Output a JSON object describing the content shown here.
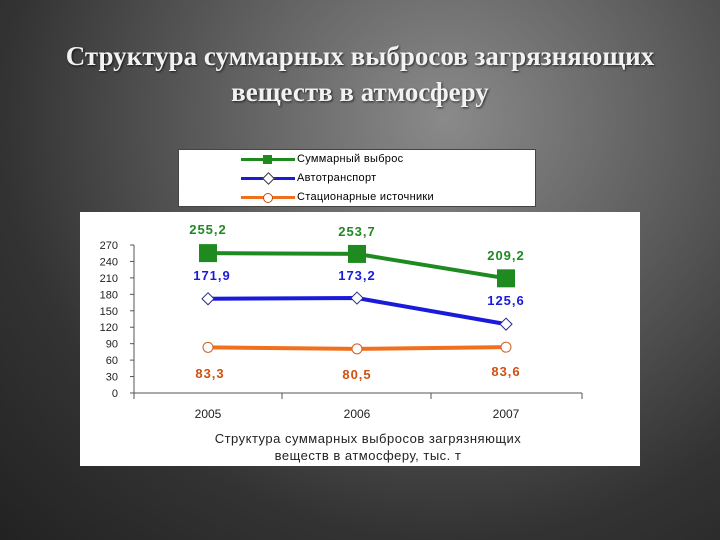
{
  "slide": {
    "title_line1": "Структура суммарных выбросов загрязняющих",
    "title_line2": "веществ в атмосферу"
  },
  "chart_data": {
    "type": "line",
    "categories": [
      "2005",
      "2006",
      "2007"
    ],
    "series": [
      {
        "name": "Суммарный выброс",
        "values": [
          255.2,
          253.7,
          209.2
        ],
        "labels": [
          "255,2",
          "253,7",
          "209,2"
        ],
        "color": "#1f8a1f",
        "marker": "square"
      },
      {
        "name": "Автотранспорт",
        "values": [
          171.9,
          173.2,
          125.6
        ],
        "labels": [
          "171,9",
          "173,2",
          "125,6"
        ],
        "color": "#1a1adb",
        "marker": "diamond"
      },
      {
        "name": "Стационарные источники",
        "values": [
          83.3,
          80.5,
          83.6
        ],
        "labels": [
          "83,3",
          "80,5",
          "83,6"
        ],
        "color": "#f07020",
        "marker": "circle"
      }
    ],
    "yticks": [
      "0",
      "30",
      "60",
      "90",
      "120",
      "150",
      "180",
      "210",
      "240",
      "270"
    ],
    "ylim": [
      0,
      270
    ],
    "title_line1": "Структура суммарных выбросов загрязняющих",
    "title_line2": "веществ в атмосферу, тыс. т",
    "legend_position": "top",
    "grid": false
  }
}
